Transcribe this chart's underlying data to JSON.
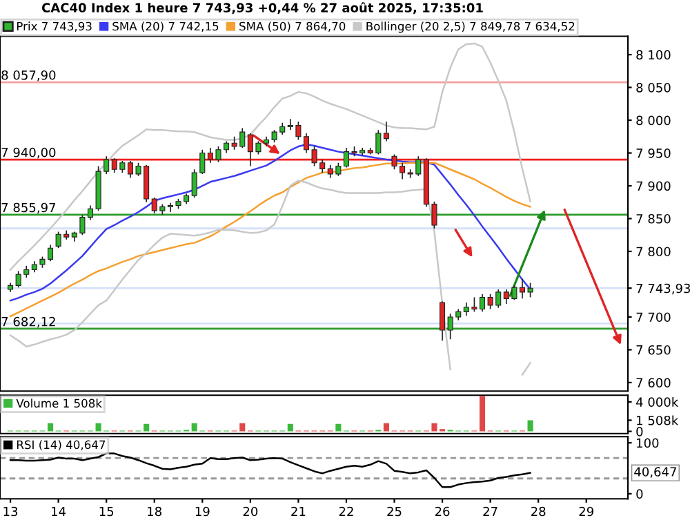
{
  "chart_data": [
    {
      "type": "candlestick",
      "title": "CAC40 Index 1 heure 7 743,93 +0,44 % 27 août 2025, 17:35:01",
      "categories": [
        "13",
        null,
        null,
        null,
        null,
        null,
        "14",
        null,
        null,
        null,
        null,
        null,
        "15",
        null,
        null,
        null,
        null,
        null,
        "18",
        null,
        null,
        null,
        null,
        null,
        "19",
        null,
        null,
        null,
        null,
        null,
        "20",
        null,
        null,
        null,
        null,
        null,
        "21",
        null,
        null,
        null,
        null,
        null,
        "22",
        null,
        null,
        null,
        null,
        null,
        "25",
        null,
        null,
        null,
        null,
        null,
        "26",
        null,
        null,
        null,
        null,
        null,
        "27",
        null,
        null,
        null,
        null,
        null,
        "28",
        null,
        null,
        null,
        null,
        null,
        "29",
        null,
        null,
        null,
        null,
        null
      ],
      "series": [
        {
          "type": "candlestick",
          "name": "Prix 7 743,93",
          "ohlc": [
            [
              7742,
              7752,
              7738,
              7748
            ],
            [
              7748,
              7770,
              7745,
              7765
            ],
            [
              7765,
              7778,
              7760,
              7772
            ],
            [
              7772,
              7785,
              7768,
              7780
            ],
            [
              7780,
              7792,
              7775,
              7788
            ],
            [
              7788,
              7810,
              7785,
              7805
            ],
            [
              7808,
              7830,
              7805,
              7826
            ],
            [
              7826,
              7832,
              7818,
              7822
            ],
            [
              7822,
              7830,
              7815,
              7828
            ],
            [
              7828,
              7855,
              7825,
              7852
            ],
            [
              7852,
              7870,
              7848,
              7865
            ],
            [
              7865,
              7930,
              7862,
              7922
            ],
            [
              7922,
              7945,
              7918,
              7940
            ],
            [
              7940,
              7942,
              7920,
              7925
            ],
            [
              7925,
              7938,
              7920,
              7935
            ],
            [
              7935,
              7938,
              7912,
              7918
            ],
            [
              7918,
              7935,
              7915,
              7930
            ],
            [
              7930,
              7932,
              7875,
              7880
            ],
            [
              7880,
              7882,
              7858,
              7862
            ],
            [
              7862,
              7872,
              7856,
              7868
            ],
            [
              7868,
              7874,
              7860,
              7870
            ],
            [
              7870,
              7880,
              7865,
              7876
            ],
            [
              7876,
              7888,
              7872,
              7885
            ],
            [
              7885,
              7925,
              7882,
              7920
            ],
            [
              7920,
              7955,
              7918,
              7950
            ],
            [
              7950,
              7958,
              7935,
              7940
            ],
            [
              7940,
              7960,
              7936,
              7955
            ],
            [
              7955,
              7968,
              7950,
              7965
            ],
            [
              7965,
              7975,
              7955,
              7960
            ],
            [
              7960,
              7988,
              7958,
              7982
            ],
            [
              7978,
              7980,
              7930,
              7952
            ],
            [
              7952,
              7968,
              7948,
              7965
            ],
            [
              7965,
              7975,
              7960,
              7970
            ],
            [
              7970,
              7985,
              7966,
              7982
            ],
            [
              7982,
              7996,
              7978,
              7990
            ],
            [
              7990,
              8002,
              7985,
              7992
            ],
            [
              7992,
              7998,
              7970,
              7975
            ],
            [
              7975,
              7980,
              7950,
              7955
            ],
            [
              7955,
              7960,
              7930,
              7935
            ],
            [
              7935,
              7940,
              7920,
              7926
            ],
            [
              7926,
              7932,
              7912,
              7918
            ],
            [
              7918,
              7935,
              7915,
              7930
            ],
            [
              7930,
              7958,
              7928,
              7952
            ],
            [
              7952,
              7960,
              7945,
              7950
            ],
            [
              7950,
              7958,
              7946,
              7954
            ],
            [
              7954,
              7958,
              7948,
              7950
            ],
            [
              7950,
              7985,
              7948,
              7980
            ],
            [
              7980,
              7998,
              7968,
              7972
            ],
            [
              7945,
              7948,
              7925,
              7930
            ],
            [
              7930,
              7935,
              7910,
              7920
            ],
            [
              7920,
              7925,
              7912,
              7918
            ],
            [
              7918,
              7945,
              7915,
              7940
            ],
            [
              7940,
              7942,
              7868,
              7872
            ],
            [
              7872,
              7876,
              7835,
              7840
            ],
            [
              7722,
              7724,
              7664,
              7680
            ],
            [
              7680,
              7705,
              7666,
              7700
            ],
            [
              7700,
              7712,
              7695,
              7708
            ],
            [
              7708,
              7722,
              7702,
              7715
            ],
            [
              7715,
              7730,
              7708,
              7712
            ],
            [
              7712,
              7735,
              7708,
              7730
            ],
            [
              7730,
              7735,
              7712,
              7718
            ],
            [
              7718,
              7742,
              7714,
              7738
            ],
            [
              7738,
              7742,
              7720,
              7728
            ],
            [
              7728,
              7748,
              7726,
              7745
            ],
            [
              7745,
              7758,
              7728,
              7738
            ],
            [
              7738,
              7752,
              7730,
              7743.93
            ],
            null,
            null,
            null,
            null,
            null,
            null,
            null,
            null,
            null,
            null,
            null,
            null
          ],
          "colors": [
            "#2fb52f",
            "#2fb52f",
            "#2fb52f",
            "#2fb52f",
            "#2fb52f",
            "#2fb52f",
            "#2fb52f",
            "#e02424",
            "#2fb52f",
            "#2fb52f",
            "#2fb52f",
            "#2fb52f",
            "#2fb52f",
            "#e02424",
            "#2fb52f",
            "#e02424",
            "#2fb52f",
            "#e02424",
            "#e02424",
            "#2fb52f",
            "#2fb52f",
            "#2fb52f",
            "#2fb52f",
            "#2fb52f",
            "#2fb52f",
            "#e02424",
            "#2fb52f",
            "#2fb52f",
            "#e02424",
            "#2fb52f",
            "#e02424",
            "#2fb52f",
            "#2fb52f",
            "#2fb52f",
            "#2fb52f",
            "#2fb52f",
            "#e02424",
            "#e02424",
            "#e02424",
            "#e02424",
            "#e02424",
            "#2fb52f",
            "#2fb52f",
            "#e02424",
            "#2fb52f",
            "#e02424",
            "#2fb52f",
            "#e02424",
            "#e02424",
            "#e02424",
            "#e02424",
            "#2fb52f",
            "#e02424",
            "#e02424",
            "#e02424",
            "#2fb52f",
            "#2fb52f",
            "#2fb52f",
            "#e02424",
            "#2fb52f",
            "#e02424",
            "#2fb52f",
            "#e02424",
            "#2fb52f",
            "#e02424",
            "#2fb52f",
            null,
            null,
            null,
            null,
            null,
            null,
            null,
            null,
            null,
            null,
            null,
            null
          ]
        },
        {
          "type": "line",
          "name": "SMA (20) 7 742,15",
          "color": "#3a3af0",
          "values": [
            7725,
            7729,
            7734,
            7738,
            7743,
            7751,
            7761,
            7771,
            7782,
            7793,
            7807,
            7821,
            7834,
            7840,
            7847,
            7853,
            7860,
            7868,
            7877,
            7881,
            7884,
            7887,
            7890,
            7894,
            7900,
            7906,
            7909,
            7912,
            7915,
            7919,
            7923,
            7927,
            7931,
            7938,
            7946,
            7954,
            7960,
            7963,
            7961,
            7958,
            7955,
            7952,
            7950,
            7948,
            7946,
            7944,
            7942,
            7940,
            7939,
            7937,
            7936,
            7936,
            7936,
            7932,
            7917,
            7902,
            7886,
            7871,
            7855,
            7838,
            7822,
            7806,
            7789,
            7773,
            7757,
            7742,
            null,
            null,
            null,
            null,
            null,
            null,
            null,
            null,
            null,
            null,
            null,
            null
          ]
        },
        {
          "type": "line",
          "name": "SMA (50) 7 864,70",
          "color": "#f5a030",
          "values": [
            7701,
            7707,
            7713,
            7719,
            7725,
            7731,
            7737,
            7744,
            7751,
            7757,
            7764,
            7770,
            7774,
            7779,
            7784,
            7788,
            7793,
            7796,
            7799,
            7802,
            7805,
            7808,
            7811,
            7813,
            7818,
            7823,
            7830,
            7838,
            7845,
            7853,
            7861,
            7870,
            7878,
            7885,
            7890,
            7898,
            7905,
            7912,
            7916,
            7920,
            7921,
            7922,
            7925,
            7927,
            7928,
            7930,
            7932,
            7934,
            7934,
            7934,
            7935,
            7935,
            7935,
            7935,
            7930,
            7925,
            7920,
            7915,
            7910,
            7903,
            7897,
            7890,
            7883,
            7877,
            7872,
            7868,
            null,
            null,
            null,
            null,
            null,
            null,
            null,
            null,
            null,
            null,
            null,
            null
          ]
        },
        {
          "type": "line",
          "name": "Bollinger (20 2,5) 7 849,78 7 634,52",
          "color": "#c8c8c8",
          "values": [
            7772,
            7785,
            7797,
            7809,
            7822,
            7835,
            7849,
            7863,
            7878,
            7892,
            7907,
            7922,
            7935,
            7949,
            7961,
            7969,
            7977,
            7986,
            7985,
            7985,
            7984,
            7983,
            7983,
            7982,
            7978,
            7974,
            7972,
            7970,
            7970,
            7972,
            7978,
            7992,
            8005,
            8020,
            8033,
            8037,
            8043,
            8041,
            8036,
            8030,
            8025,
            8021,
            8017,
            8012,
            8007,
            8002,
            7997,
            7992,
            7989,
            7988,
            7988,
            7987,
            7986,
            7990,
            8043,
            8080,
            8108,
            8116,
            8117,
            8112,
            8088,
            8060,
            8030,
            7982,
            7926,
            7876,
            null,
            null,
            null,
            null,
            null,
            null,
            null,
            null,
            null,
            null,
            null,
            null
          ]
        },
        {
          "type": "line",
          "color": "#c8c8c8",
          "values": [
            7672,
            7664,
            7655,
            7658,
            7662,
            7666,
            7669,
            7673,
            7680,
            7692,
            7705,
            7718,
            7725,
            7741,
            7757,
            7772,
            7787,
            7798,
            7810,
            7821,
            7827,
            7826,
            7825,
            7824,
            7826,
            7829,
            7833,
            7833,
            7832,
            7830,
            7828,
            7829,
            7832,
            7841,
            7869,
            7900,
            7908,
            7905,
            7900,
            7896,
            7894,
            7891,
            7889,
            7889,
            7889,
            7889,
            7889,
            7890,
            7890,
            7891,
            7893,
            7894,
            7895,
            7830,
            7720,
            7620,
            null,
            null,
            null,
            null,
            null,
            null,
            null,
            null,
            7612,
            7630,
            null,
            null,
            null,
            null,
            null,
            null,
            null,
            null,
            null,
            null,
            null,
            null
          ]
        }
      ],
      "ylim": [
        7587,
        8128
      ],
      "yticks": [
        {
          "value": 7600,
          "label": "7 600"
        },
        {
          "value": 7650,
          "label": "7 650"
        },
        {
          "value": 7700,
          "label": "7 700"
        },
        {
          "value": 7743.93,
          "label": "7 743,93"
        },
        {
          "value": 7800,
          "label": "7 800"
        },
        {
          "value": 7850,
          "label": "7 850"
        },
        {
          "value": 7900,
          "label": "7 900"
        },
        {
          "value": 7950,
          "label": "7 950"
        },
        {
          "value": 8000,
          "label": "8 000"
        },
        {
          "value": 8050,
          "label": "8 050"
        },
        {
          "value": 8100,
          "label": "8 100"
        }
      ],
      "ref_lines": [
        {
          "axis": "y",
          "value": 8057.9,
          "label": "8 057,90",
          "color": "#f4a0a0"
        },
        {
          "axis": "y",
          "value": 7940.0,
          "label": "7 940,00",
          "color": "#f02020"
        },
        {
          "axis": "y",
          "value": 7855.97,
          "label": "7 855,97",
          "color": "#2a9a2a"
        },
        {
          "axis": "y",
          "value": 7835,
          "color": "#d6e0f8"
        },
        {
          "axis": "y",
          "value": 7743.93,
          "color": "#d6e0f8"
        },
        {
          "axis": "y",
          "value": 7690,
          "color": "#d6e0f8"
        },
        {
          "axis": "y",
          "value": 7682.12,
          "label": "7 682,12",
          "color": "#2a9a2a"
        }
      ],
      "tick_labels": "y",
      "legend": "top"
    },
    {
      "type": "bar",
      "categories": [
        "13",
        null,
        null,
        null,
        null,
        null,
        "14",
        null,
        null,
        null,
        null,
        null,
        "15",
        null,
        null,
        null,
        null,
        null,
        "18",
        null,
        null,
        null,
        null,
        null,
        "19",
        null,
        null,
        null,
        null,
        null,
        "20",
        null,
        null,
        null,
        null,
        null,
        "21",
        null,
        null,
        null,
        null,
        null,
        "22",
        null,
        null,
        null,
        null,
        null,
        "25",
        null,
        null,
        null,
        null,
        null,
        "26",
        null,
        null,
        null,
        null,
        null,
        "27",
        null,
        null,
        null,
        null,
        null,
        "28",
        null,
        null,
        null,
        null,
        null,
        "29",
        null,
        null,
        null,
        null,
        null
      ],
      "series": [
        {
          "name": "Volume 1 508k",
          "values": [
            100,
            100,
            100,
            100,
            100,
            1100,
            100,
            100,
            100,
            100,
            100,
            1100,
            100,
            100,
            100,
            100,
            100,
            1000,
            100,
            100,
            100,
            100,
            200,
            1100,
            100,
            100,
            100,
            100,
            100,
            1100,
            100,
            100,
            100,
            100,
            100,
            1000,
            100,
            100,
            100,
            100,
            100,
            1000,
            100,
            100,
            100,
            100,
            200,
            1100,
            100,
            100,
            100,
            100,
            100,
            1100,
            300,
            200,
            100,
            100,
            100,
            4800,
            100,
            100,
            100,
            100,
            100,
            1508,
            null,
            null,
            null,
            null,
            null,
            null,
            null,
            null,
            null,
            null,
            null,
            null
          ],
          "colors": [
            "#3cb93c",
            "#3cb93c",
            "#3cb93c",
            "#3cb93c",
            "#3cb93c",
            "#3cb93c",
            "#3cb93c",
            "#e04848",
            "#3cb93c",
            "#3cb93c",
            "#3cb93c",
            "#3cb93c",
            "#3cb93c",
            "#e04848",
            "#3cb93c",
            "#e04848",
            "#3cb93c",
            "#3cb93c",
            "#e04848",
            "#3cb93c",
            "#3cb93c",
            "#3cb93c",
            "#3cb93c",
            "#3cb93c",
            "#3cb93c",
            "#e04848",
            "#3cb93c",
            "#3cb93c",
            "#e04848",
            "#e04848",
            "#e04848",
            "#3cb93c",
            "#3cb93c",
            "#3cb93c",
            "#3cb93c",
            "#3cb93c",
            "#e04848",
            "#e04848",
            "#e04848",
            "#e04848",
            "#e04848",
            "#3cb93c",
            "#3cb93c",
            "#e04848",
            "#3cb93c",
            "#e04848",
            "#3cb93c",
            "#e04848",
            "#e04848",
            "#e04848",
            "#e04848",
            "#3cb93c",
            "#e04848",
            "#e04848",
            "#e04848",
            "#3cb93c",
            "#3cb93c",
            "#3cb93c",
            "#e04848",
            "#e04848",
            "#e04848",
            "#3cb93c",
            "#e04848",
            "#3cb93c",
            "#e04848",
            "#3cb93c",
            null,
            null,
            null,
            null,
            null,
            null,
            null,
            null,
            null,
            null,
            null,
            null
          ]
        }
      ],
      "ylim": [
        -300,
        4900
      ],
      "yticks": [
        0,
        {
          "value": 1508,
          "label": "1 508k"
        },
        {
          "value": 4000,
          "label": "4 000k"
        }
      ],
      "tick_labels": "y",
      "legend": "top left"
    },
    {
      "type": "line",
      "categories": [
        "13",
        null,
        null,
        null,
        null,
        null,
        "14",
        null,
        null,
        null,
        null,
        null,
        "15",
        null,
        null,
        null,
        null,
        null,
        "18",
        null,
        null,
        null,
        null,
        null,
        "19",
        null,
        null,
        null,
        null,
        null,
        "20",
        null,
        null,
        null,
        null,
        null,
        "21",
        null,
        null,
        null,
        null,
        null,
        "22",
        null,
        null,
        null,
        null,
        null,
        "25",
        null,
        null,
        null,
        null,
        null,
        "26",
        null,
        null,
        null,
        null,
        null,
        "27",
        null,
        null,
        null,
        null,
        null,
        "28",
        null,
        null,
        null,
        null,
        null,
        "29",
        null,
        null,
        null,
        null,
        null
      ],
      "series": [
        {
          "name": "RSI (14) 40,647",
          "color": "#000000",
          "values": [
            66,
            66,
            65,
            65,
            66,
            67,
            71,
            69,
            69,
            66,
            69,
            72,
            79,
            79,
            74,
            71,
            66,
            60,
            55,
            49,
            48,
            51,
            53,
            57,
            59,
            70,
            68,
            68,
            70,
            71,
            66,
            67,
            69,
            70,
            69,
            62,
            56,
            50,
            44,
            40,
            45,
            49,
            53,
            55,
            53,
            57,
            64,
            59,
            45,
            43,
            40,
            42,
            46,
            31,
            13,
            13,
            18,
            21,
            23,
            24,
            26,
            31,
            33,
            36,
            38,
            41,
            null,
            null,
            null,
            null,
            null,
            null,
            null,
            null,
            null,
            null,
            null,
            null
          ]
        }
      ],
      "ylim": [
        -10,
        112
      ],
      "yticks": [
        0,
        100
      ],
      "annotations": [
        "40,647"
      ],
      "ref_lines": [
        {
          "axis": "y",
          "value": 70,
          "color": "#999999",
          "line_style": "dashed"
        },
        {
          "axis": "y",
          "value": 30,
          "color": "#999999",
          "line_style": "dashed"
        }
      ],
      "legend": "top left"
    }
  ]
}
